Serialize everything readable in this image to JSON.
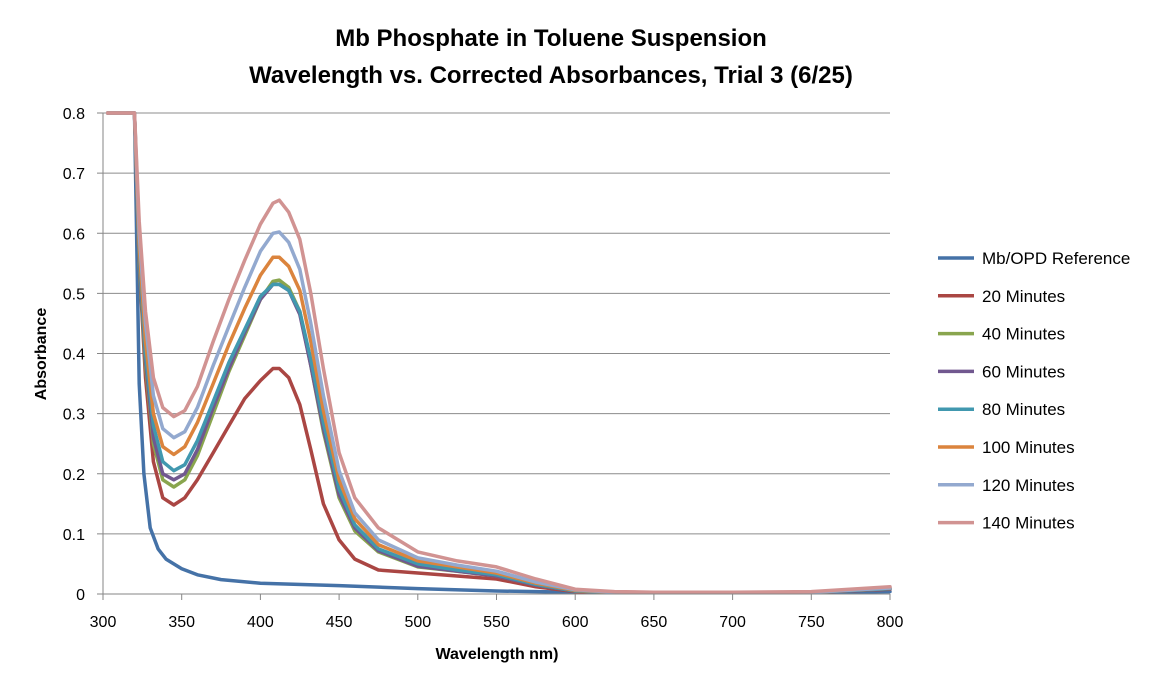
{
  "chart_data": {
    "type": "line",
    "title_line1": "Mb Phosphate in Toluene Suspension",
    "title_line2": "Wavelength vs. Corrected Absorbances, Trial 3 (6/25)",
    "xlabel": "Wavelength nm)",
    "ylabel": "Absorbance",
    "xlim": [
      300,
      800
    ],
    "ylim": [
      0,
      0.8
    ],
    "x_ticks": [
      "300",
      "350",
      "400",
      "450",
      "500",
      "550",
      "600",
      "650",
      "700",
      "750",
      "800"
    ],
    "y_ticks": [
      "0",
      "0.1",
      "0.2",
      "0.3",
      "0.4",
      "0.5",
      "0.6",
      "0.7",
      "0.8"
    ],
    "grid": "horizontal",
    "legend_position": "right",
    "series": [
      {
        "name": "Mb/OPD Reference",
        "color": "#4572A7",
        "points": [
          [
            303,
            0.8
          ],
          [
            320,
            0.8
          ],
          [
            323,
            0.35
          ],
          [
            326,
            0.2
          ],
          [
            330,
            0.11
          ],
          [
            335,
            0.075
          ],
          [
            340,
            0.058
          ],
          [
            350,
            0.042
          ],
          [
            360,
            0.032
          ],
          [
            375,
            0.024
          ],
          [
            400,
            0.018
          ],
          [
            450,
            0.014
          ],
          [
            500,
            0.009
          ],
          [
            550,
            0.005
          ],
          [
            600,
            0.003
          ],
          [
            650,
            0.002
          ],
          [
            700,
            0.002
          ],
          [
            750,
            0.003
          ],
          [
            800,
            0.004
          ]
        ]
      },
      {
        "name": "20 Minutes",
        "color": "#AA4643",
        "points": [
          [
            303,
            0.8
          ],
          [
            320,
            0.8
          ],
          [
            323,
            0.55
          ],
          [
            327,
            0.36
          ],
          [
            332,
            0.22
          ],
          [
            338,
            0.16
          ],
          [
            345,
            0.148
          ],
          [
            352,
            0.16
          ],
          [
            360,
            0.19
          ],
          [
            370,
            0.235
          ],
          [
            380,
            0.28
          ],
          [
            390,
            0.325
          ],
          [
            400,
            0.355
          ],
          [
            408,
            0.375
          ],
          [
            412,
            0.375
          ],
          [
            418,
            0.36
          ],
          [
            425,
            0.315
          ],
          [
            432,
            0.24
          ],
          [
            440,
            0.15
          ],
          [
            450,
            0.09
          ],
          [
            460,
            0.058
          ],
          [
            475,
            0.04
          ],
          [
            500,
            0.035
          ],
          [
            525,
            0.03
          ],
          [
            550,
            0.025
          ],
          [
            575,
            0.012
          ],
          [
            600,
            0.004
          ],
          [
            625,
            0.002
          ],
          [
            650,
            0.002
          ],
          [
            700,
            0.002
          ],
          [
            750,
            0.003
          ],
          [
            800,
            0.008
          ]
        ]
      },
      {
        "name": "40 Minutes",
        "color": "#89A54E",
        "points": [
          [
            303,
            0.8
          ],
          [
            320,
            0.8
          ],
          [
            323,
            0.55
          ],
          [
            327,
            0.38
          ],
          [
            332,
            0.25
          ],
          [
            338,
            0.19
          ],
          [
            345,
            0.178
          ],
          [
            352,
            0.19
          ],
          [
            360,
            0.23
          ],
          [
            370,
            0.3
          ],
          [
            380,
            0.37
          ],
          [
            390,
            0.43
          ],
          [
            400,
            0.49
          ],
          [
            408,
            0.52
          ],
          [
            412,
            0.522
          ],
          [
            418,
            0.51
          ],
          [
            425,
            0.47
          ],
          [
            432,
            0.38
          ],
          [
            440,
            0.27
          ],
          [
            450,
            0.16
          ],
          [
            460,
            0.105
          ],
          [
            475,
            0.07
          ],
          [
            500,
            0.045
          ],
          [
            525,
            0.038
          ],
          [
            550,
            0.03
          ],
          [
            575,
            0.015
          ],
          [
            600,
            0.005
          ],
          [
            625,
            0.003
          ],
          [
            650,
            0.002
          ],
          [
            700,
            0.002
          ],
          [
            750,
            0.003
          ],
          [
            800,
            0.009
          ]
        ]
      },
      {
        "name": "60 Minutes",
        "color": "#71588F",
        "points": [
          [
            303,
            0.8
          ],
          [
            320,
            0.8
          ],
          [
            323,
            0.56
          ],
          [
            327,
            0.39
          ],
          [
            332,
            0.26
          ],
          [
            338,
            0.2
          ],
          [
            345,
            0.19
          ],
          [
            352,
            0.2
          ],
          [
            360,
            0.24
          ],
          [
            370,
            0.31
          ],
          [
            380,
            0.375
          ],
          [
            390,
            0.435
          ],
          [
            400,
            0.49
          ],
          [
            408,
            0.515
          ],
          [
            412,
            0.515
          ],
          [
            418,
            0.505
          ],
          [
            425,
            0.465
          ],
          [
            432,
            0.38
          ],
          [
            440,
            0.275
          ],
          [
            450,
            0.165
          ],
          [
            460,
            0.11
          ],
          [
            475,
            0.072
          ],
          [
            500,
            0.046
          ],
          [
            525,
            0.038
          ],
          [
            550,
            0.03
          ],
          [
            575,
            0.015
          ],
          [
            600,
            0.005
          ],
          [
            625,
            0.003
          ],
          [
            650,
            0.002
          ],
          [
            700,
            0.002
          ],
          [
            750,
            0.003
          ],
          [
            800,
            0.009
          ]
        ]
      },
      {
        "name": "80 Minutes",
        "color": "#4198AF",
        "points": [
          [
            303,
            0.8
          ],
          [
            320,
            0.8
          ],
          [
            323,
            0.57
          ],
          [
            327,
            0.4
          ],
          [
            332,
            0.28
          ],
          [
            338,
            0.22
          ],
          [
            345,
            0.205
          ],
          [
            352,
            0.215
          ],
          [
            360,
            0.255
          ],
          [
            370,
            0.32
          ],
          [
            380,
            0.385
          ],
          [
            390,
            0.44
          ],
          [
            400,
            0.495
          ],
          [
            408,
            0.515
          ],
          [
            412,
            0.515
          ],
          [
            418,
            0.505
          ],
          [
            425,
            0.47
          ],
          [
            432,
            0.39
          ],
          [
            440,
            0.285
          ],
          [
            450,
            0.175
          ],
          [
            460,
            0.115
          ],
          [
            475,
            0.075
          ],
          [
            500,
            0.05
          ],
          [
            525,
            0.04
          ],
          [
            550,
            0.032
          ],
          [
            575,
            0.016
          ],
          [
            600,
            0.005
          ],
          [
            625,
            0.003
          ],
          [
            650,
            0.002
          ],
          [
            700,
            0.002
          ],
          [
            750,
            0.003
          ],
          [
            800,
            0.009
          ]
        ]
      },
      {
        "name": "100 Minutes",
        "color": "#DB843D",
        "points": [
          [
            303,
            0.8
          ],
          [
            320,
            0.8
          ],
          [
            323,
            0.58
          ],
          [
            327,
            0.42
          ],
          [
            332,
            0.3
          ],
          [
            338,
            0.245
          ],
          [
            345,
            0.232
          ],
          [
            352,
            0.245
          ],
          [
            360,
            0.285
          ],
          [
            370,
            0.35
          ],
          [
            380,
            0.415
          ],
          [
            390,
            0.475
          ],
          [
            400,
            0.53
          ],
          [
            408,
            0.56
          ],
          [
            412,
            0.56
          ],
          [
            418,
            0.545
          ],
          [
            425,
            0.505
          ],
          [
            432,
            0.42
          ],
          [
            440,
            0.305
          ],
          [
            450,
            0.19
          ],
          [
            460,
            0.125
          ],
          [
            475,
            0.082
          ],
          [
            500,
            0.055
          ],
          [
            525,
            0.045
          ],
          [
            550,
            0.035
          ],
          [
            575,
            0.018
          ],
          [
            600,
            0.006
          ],
          [
            625,
            0.003
          ],
          [
            650,
            0.002
          ],
          [
            700,
            0.002
          ],
          [
            750,
            0.003
          ],
          [
            800,
            0.01
          ]
        ]
      },
      {
        "name": "120 Minutes",
        "color": "#93A9CF",
        "points": [
          [
            303,
            0.8
          ],
          [
            320,
            0.8
          ],
          [
            323,
            0.6
          ],
          [
            327,
            0.45
          ],
          [
            332,
            0.33
          ],
          [
            338,
            0.275
          ],
          [
            345,
            0.26
          ],
          [
            352,
            0.27
          ],
          [
            360,
            0.31
          ],
          [
            370,
            0.38
          ],
          [
            380,
            0.445
          ],
          [
            390,
            0.51
          ],
          [
            400,
            0.57
          ],
          [
            408,
            0.6
          ],
          [
            412,
            0.602
          ],
          [
            418,
            0.585
          ],
          [
            425,
            0.54
          ],
          [
            432,
            0.45
          ],
          [
            440,
            0.33
          ],
          [
            450,
            0.205
          ],
          [
            460,
            0.135
          ],
          [
            475,
            0.09
          ],
          [
            500,
            0.06
          ],
          [
            525,
            0.048
          ],
          [
            550,
            0.038
          ],
          [
            575,
            0.02
          ],
          [
            600,
            0.007
          ],
          [
            625,
            0.003
          ],
          [
            650,
            0.002
          ],
          [
            700,
            0.002
          ],
          [
            750,
            0.003
          ],
          [
            800,
            0.01
          ]
        ]
      },
      {
        "name": "140 Minutes",
        "color": "#D19392",
        "points": [
          [
            303,
            0.8
          ],
          [
            320,
            0.8
          ],
          [
            323,
            0.62
          ],
          [
            327,
            0.47
          ],
          [
            332,
            0.36
          ],
          [
            338,
            0.31
          ],
          [
            345,
            0.295
          ],
          [
            352,
            0.305
          ],
          [
            360,
            0.345
          ],
          [
            370,
            0.42
          ],
          [
            380,
            0.49
          ],
          [
            390,
            0.555
          ],
          [
            400,
            0.615
          ],
          [
            408,
            0.65
          ],
          [
            412,
            0.655
          ],
          [
            418,
            0.635
          ],
          [
            425,
            0.59
          ],
          [
            432,
            0.5
          ],
          [
            440,
            0.375
          ],
          [
            450,
            0.235
          ],
          [
            460,
            0.16
          ],
          [
            475,
            0.11
          ],
          [
            500,
            0.07
          ],
          [
            525,
            0.055
          ],
          [
            550,
            0.045
          ],
          [
            575,
            0.025
          ],
          [
            600,
            0.008
          ],
          [
            625,
            0.004
          ],
          [
            650,
            0.003
          ],
          [
            700,
            0.003
          ],
          [
            750,
            0.004
          ],
          [
            800,
            0.012
          ]
        ]
      }
    ]
  }
}
